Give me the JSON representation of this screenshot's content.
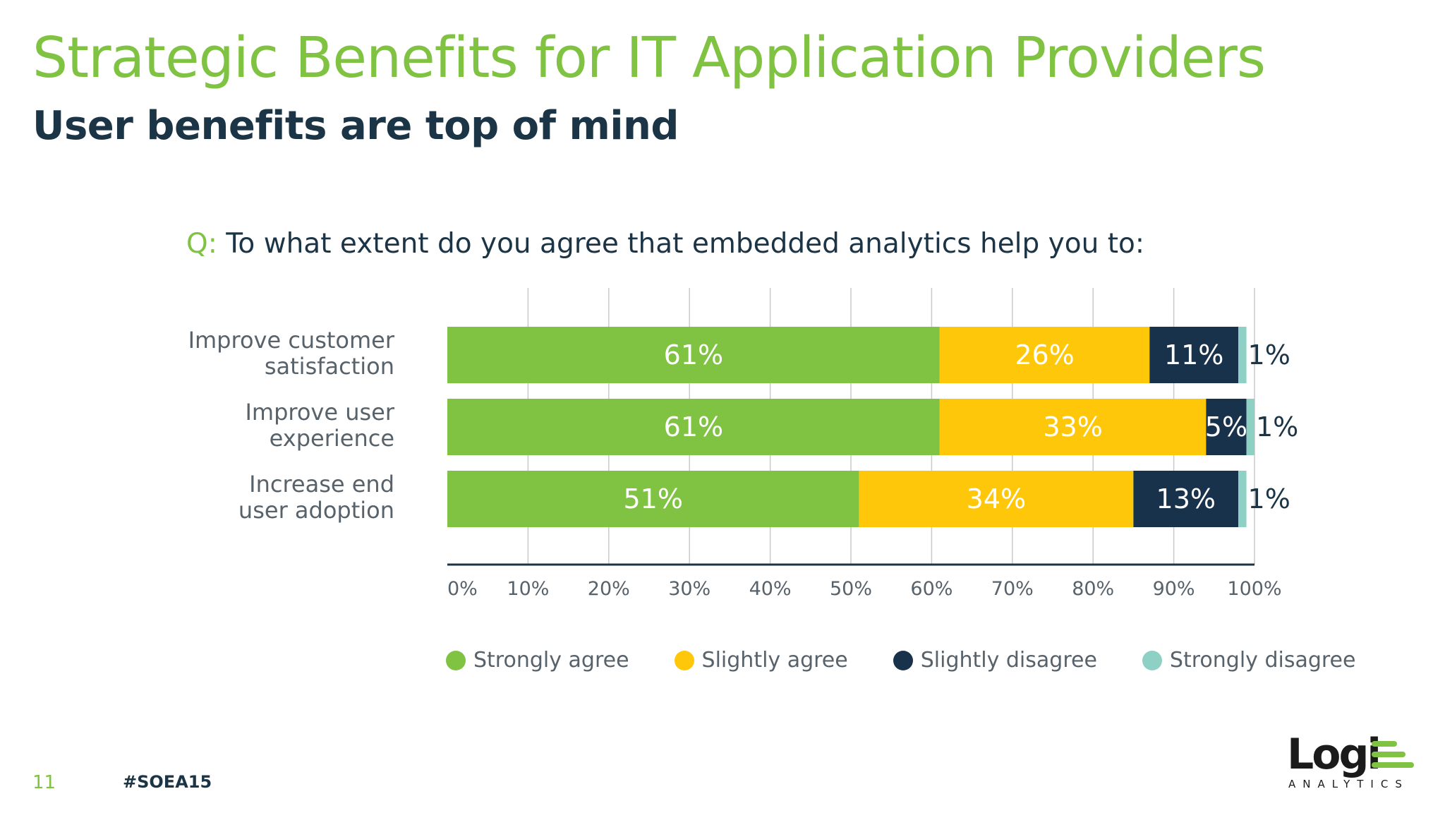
{
  "header": {
    "title": "Strategic Benefits for IT Application Providers",
    "subtitle": "User benefits are top of mind"
  },
  "question": {
    "prefix": "Q:",
    "text": " To what extent do you agree that embedded analytics help you to:"
  },
  "chart_data": {
    "type": "bar",
    "orientation": "horizontal",
    "stacked": true,
    "categories": [
      [
        "Improve customer",
        "satisfaction"
      ],
      [
        "Improve user",
        "experience"
      ],
      [
        "Increase end",
        "user adoption"
      ]
    ],
    "series": [
      {
        "name": "Strongly agree",
        "values": [
          61,
          61,
          51
        ],
        "labels": [
          "61%",
          "61%",
          "51%"
        ],
        "color": "#80c342",
        "label_color": "#ffffff"
      },
      {
        "name": "Slightly agree",
        "values": [
          26,
          33,
          34
        ],
        "labels": [
          "26%",
          "33%",
          "34%"
        ],
        "color": "#ffc709",
        "label_color": "#ffffff"
      },
      {
        "name": "Slightly disagree",
        "values": [
          11,
          5,
          13
        ],
        "labels": [
          "11%",
          "5%",
          "13%"
        ],
        "color": "#17324a",
        "label_color": "#ffffff"
      },
      {
        "name": "Strongly disagree",
        "values": [
          1,
          1,
          1
        ],
        "labels": [
          "1%",
          "1%",
          "1%"
        ],
        "color": "#8fd0c4",
        "label_color": "#1b3547"
      }
    ],
    "x_ticks": [
      "0%",
      "10%",
      "20%",
      "30%",
      "40%",
      "50%",
      "60%",
      "70%",
      "80%",
      "90%",
      "100%"
    ],
    "xlim": [
      0,
      100
    ],
    "grid": true,
    "legend_position": "bottom"
  },
  "footer": {
    "page_number": "11",
    "hashtag": "#SOEA15"
  },
  "logo": {
    "word": "Logi",
    "sub": "ANALYTICS"
  }
}
